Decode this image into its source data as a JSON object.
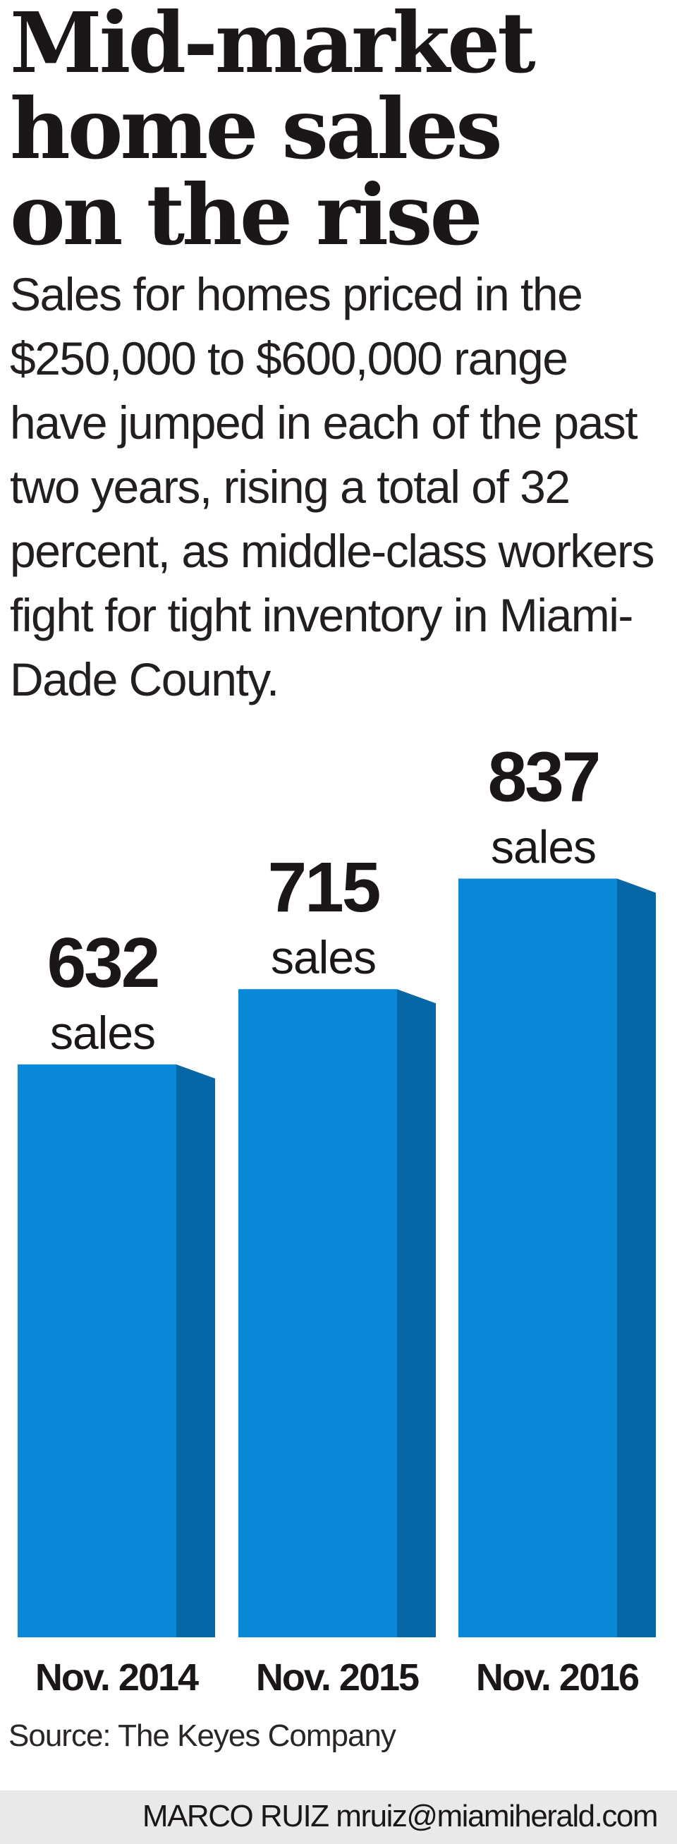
{
  "headline": [
    "Mid-market",
    "home sales",
    "on the rise"
  ],
  "description": "Sales for homes priced in the $250,000 to $600,000 range have jumped in each of the past two years, rising a total of 32 percent, as middle-class workers fight for tight inventory in Miami-Dade County.",
  "source": "Source: The Keyes Company",
  "credit": "MARCO RUIZ mruiz@miamiherald.com",
  "colors": {
    "bar_front": "#0a88d8",
    "bar_side": "#0567a6",
    "bar_top": "#0a88d8"
  },
  "chart_data": {
    "type": "bar",
    "title": "Mid-market home sales on the rise",
    "categories": [
      "Nov. 2014",
      "Nov. 2015",
      "Nov. 2016"
    ],
    "values": [
      632,
      715,
      837
    ],
    "value_unit_label": "sales",
    "data_labels": [
      "632",
      "715",
      "837"
    ],
    "xlabel": "",
    "ylabel": "",
    "ylim": [
      0,
      837
    ],
    "grid": false
  }
}
